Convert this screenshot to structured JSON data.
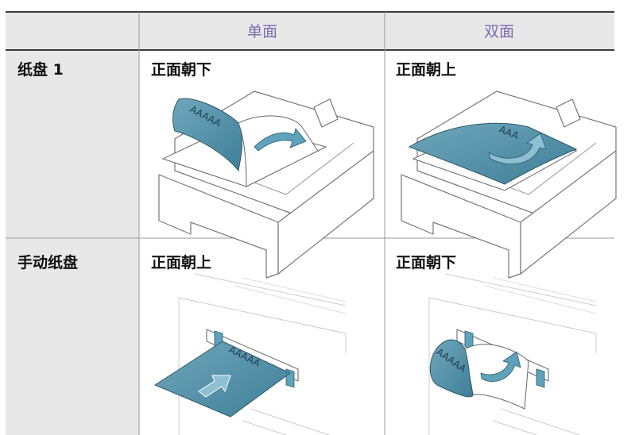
{
  "table": {
    "columns": [
      "单面",
      "双面"
    ],
    "rows": [
      {
        "label": "纸盘 1",
        "cells": [
          {
            "text": "正面朝下",
            "paper_text": "AAAAA"
          },
          {
            "text": "正面朝上",
            "paper_text": "AAA"
          }
        ]
      },
      {
        "label": "手动纸盘",
        "cells": [
          {
            "text": "正面朝上",
            "paper_text": "AAAAA"
          },
          {
            "text": "正面朝下",
            "paper_text": "AAAAA"
          }
        ]
      }
    ]
  }
}
